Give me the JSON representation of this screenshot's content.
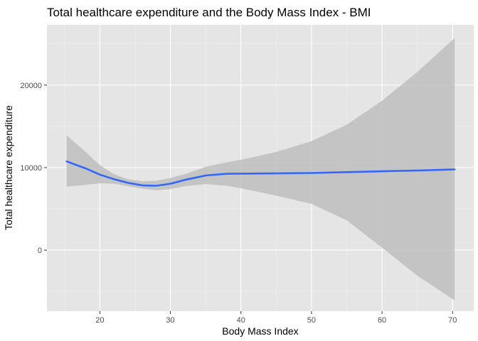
{
  "chart_data": {
    "type": "line",
    "title": "Total healthcare expenditure and the Body Mass Index -   BMI",
    "xlabel": "Body Mass Index",
    "ylabel": "Total healthcare expenditure",
    "xlim": [
      12.5,
      73
    ],
    "ylim": [
      -7400,
      27300
    ],
    "x_ticks": [
      20,
      30,
      40,
      50,
      60,
      70
    ],
    "y_ticks": [
      0,
      10000,
      20000
    ],
    "x_tick_labels": [
      "20",
      "30",
      "40",
      "50",
      "60",
      "70"
    ],
    "y_tick_labels": [
      "0",
      "10000",
      "20000"
    ],
    "grid": true,
    "legend": "none",
    "colors": {
      "panel": "#e5e5e5",
      "grid_major": "#ffffff",
      "grid_minor": "#f0f0f0",
      "line": "#3366ff",
      "ribbon": "#bebebe"
    },
    "series": [
      {
        "x": [
          15.3,
          18,
          20,
          22,
          24,
          26,
          28,
          30,
          32,
          35,
          38,
          40,
          45,
          50,
          55,
          60,
          65,
          70.3
        ],
        "y": [
          10750,
          9900,
          9150,
          8600,
          8150,
          7850,
          7800,
          8050,
          8500,
          9050,
          9250,
          9270,
          9300,
          9350,
          9450,
          9550,
          9650,
          9780
        ],
        "lower": [
          7700,
          7900,
          8100,
          8050,
          7750,
          7450,
          7250,
          7400,
          7750,
          8000,
          7800,
          7500,
          6600,
          5600,
          3600,
          300,
          -3100,
          -6100
        ],
        "upper": [
          13900,
          11900,
          10300,
          9200,
          8600,
          8350,
          8400,
          8750,
          9200,
          10100,
          10650,
          10950,
          11900,
          13200,
          15200,
          18100,
          21600,
          25700
        ]
      }
    ]
  }
}
